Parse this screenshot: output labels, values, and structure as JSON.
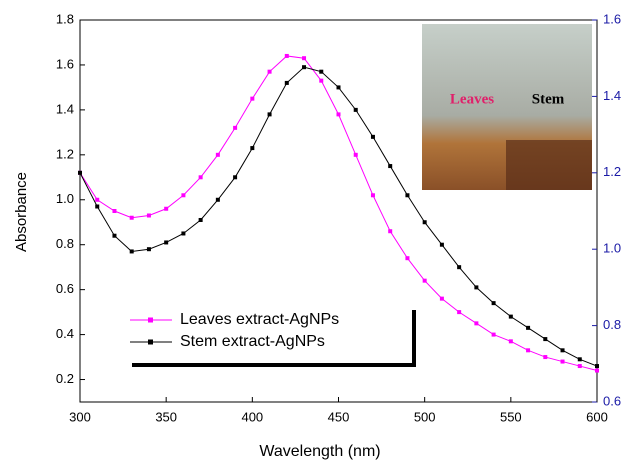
{
  "chart_data": {
    "type": "line",
    "x_label": "Wavelength (nm)",
    "y_label": "Absorbance",
    "x": [
      300,
      310,
      320,
      330,
      340,
      350,
      360,
      370,
      380,
      390,
      400,
      410,
      420,
      430,
      440,
      450,
      460,
      470,
      480,
      490,
      500,
      510,
      520,
      530,
      540,
      550,
      560,
      570,
      580,
      590,
      600
    ],
    "series": [
      {
        "name": "Leaves extract-AgNPs",
        "color": "#ff00ff",
        "values": [
          1.12,
          1.0,
          0.95,
          0.92,
          0.93,
          0.96,
          1.02,
          1.1,
          1.2,
          1.32,
          1.45,
          1.57,
          1.64,
          1.63,
          1.53,
          1.38,
          1.2,
          1.02,
          0.86,
          0.74,
          0.64,
          0.56,
          0.5,
          0.45,
          0.4,
          0.37,
          0.33,
          0.3,
          0.28,
          0.26,
          0.24
        ]
      },
      {
        "name": "Stem extract-AgNPs",
        "color": "#000000",
        "values": [
          1.12,
          0.97,
          0.84,
          0.77,
          0.78,
          0.81,
          0.85,
          0.91,
          1.0,
          1.1,
          1.23,
          1.38,
          1.52,
          1.59,
          1.57,
          1.5,
          1.4,
          1.28,
          1.15,
          1.02,
          0.9,
          0.8,
          0.7,
          0.61,
          0.54,
          0.48,
          0.43,
          0.38,
          0.33,
          0.29,
          0.26
        ]
      }
    ],
    "xlim": [
      300,
      600
    ],
    "xticks": [
      300,
      350,
      400,
      450,
      500,
      550,
      600
    ],
    "ylim": [
      0.1,
      1.8
    ],
    "yticks": [
      0.2,
      0.4,
      0.6,
      0.8,
      {
        "value": 1.0,
        "label": "1.0"
      },
      1.2,
      1.4,
      1.6,
      1.8
    ],
    "y2lim": [
      0.6,
      1.6
    ],
    "y2ticks": [
      0.6,
      0.8,
      {
        "value": 1.0,
        "label": "1.0"
      },
      1.2,
      1.4,
      1.6
    ],
    "y2color": "#1a1aa6",
    "annotations": [
      "Leaves",
      "Stem"
    ]
  }
}
